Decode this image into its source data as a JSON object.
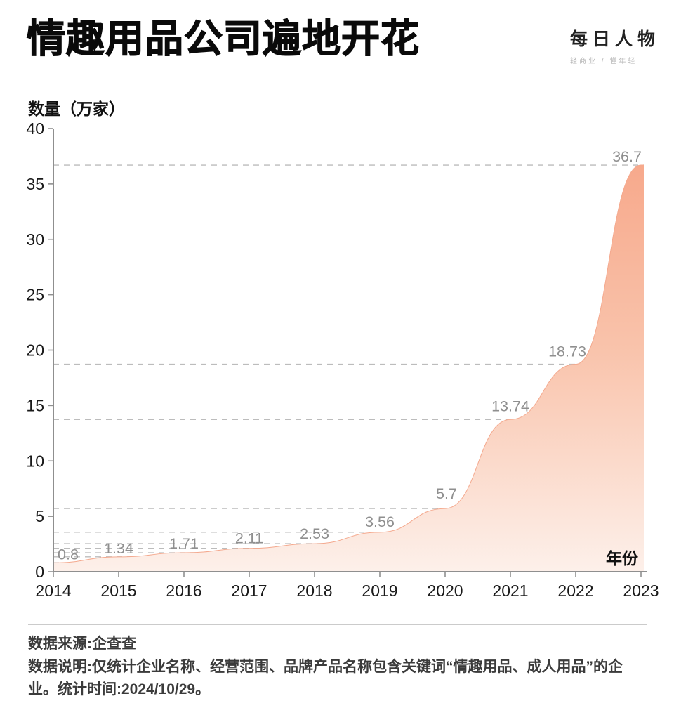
{
  "header": {
    "title": "情趣用品公司遍地开花",
    "logo": {
      "main": "每日人物",
      "tagline": "轻商业 / 懂年轻"
    }
  },
  "chart_data": {
    "type": "area",
    "title": "情趣用品公司遍地开花",
    "ylabel": "数量（万家）",
    "xlabel": "年份",
    "categories": [
      2014,
      2015,
      2016,
      2017,
      2018,
      2019,
      2020,
      2021,
      2022,
      2023
    ],
    "values": [
      0.8,
      1.34,
      1.71,
      2.11,
      2.53,
      3.56,
      5.7,
      13.74,
      18.73,
      36.7
    ],
    "point_labels": [
      "0.8",
      "1.34",
      "1.71",
      "2.11",
      "2.53",
      "3.56",
      "5.7",
      "13.74",
      "18.73",
      "36.7"
    ],
    "ylim": [
      0,
      40
    ],
    "y_ticks": [
      0,
      5,
      10,
      15,
      20,
      25,
      30,
      35,
      40
    ],
    "grid": "horizontal-dashed-line-at-each-data-value",
    "legend": "none",
    "colors": {
      "area_gradient_top": "#f7a98c",
      "area_gradient_mid": "#f9c3ab",
      "area_gradient_bottom": "#fdf0ea",
      "area_edge": "#f4a98e",
      "gridline": "#bcbcbc",
      "axis": "#8f8f8f",
      "tick_label": "#1a1a1a",
      "value_label": "#8f8f8f"
    }
  },
  "footer": {
    "source": "数据来源:企查查",
    "note": "数据说明:仅统计企业名称、经营范围、品牌产品名称包含关键词“情趣用品、成人用品”的企业。统计时间:2024/10/29。"
  }
}
